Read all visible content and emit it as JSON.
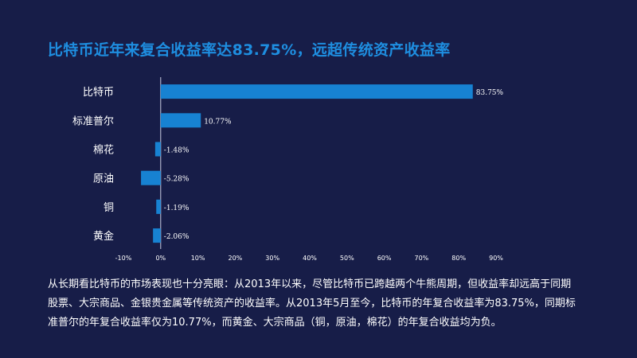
{
  "title": "比特币近年来复合收益率达83.75%，远超传统资产收益率",
  "paragraph": [
    "从长期看比特币的市场表现也十分亮眼：从2013年以来，尽管比特币已跨越两个牛熊周期，但收益率却远高于同期",
    "股票、大宗商品、金银贵金属等传统资产的收益率。从2013年5月至今，比特币的年复合收益率为83.75%，同期标",
    "准普尔的年复合收益率仅为10.77%，而黄金、大宗商品（铜，原油，棉花）的年复合收益均为负。"
  ],
  "colors": {
    "bar": "#1782d2",
    "background": "#171d48",
    "title": "#1e8ee0",
    "text": "#ffffff"
  },
  "chart_data": {
    "type": "bar",
    "orientation": "horizontal",
    "categories": [
      "比特币",
      "标准普尔",
      "棉花",
      "原油",
      "铜",
      "黄金"
    ],
    "values": [
      83.75,
      10.77,
      -1.48,
      -5.28,
      -1.19,
      -2.06
    ],
    "data_labels": [
      "83.75%",
      "10.77%",
      "-1.48%",
      "-5.28%",
      "-1.19%",
      "-2.06%"
    ],
    "xlim": [
      -10,
      90
    ],
    "xticks": [
      -10,
      0,
      10,
      20,
      30,
      40,
      50,
      60,
      70,
      80,
      90
    ],
    "xtick_labels": [
      "-10%",
      "0%",
      "10%",
      "20%",
      "30%",
      "40%",
      "50%",
      "60%",
      "70%",
      "80%",
      "90%"
    ],
    "grid": false,
    "legend": "none"
  }
}
